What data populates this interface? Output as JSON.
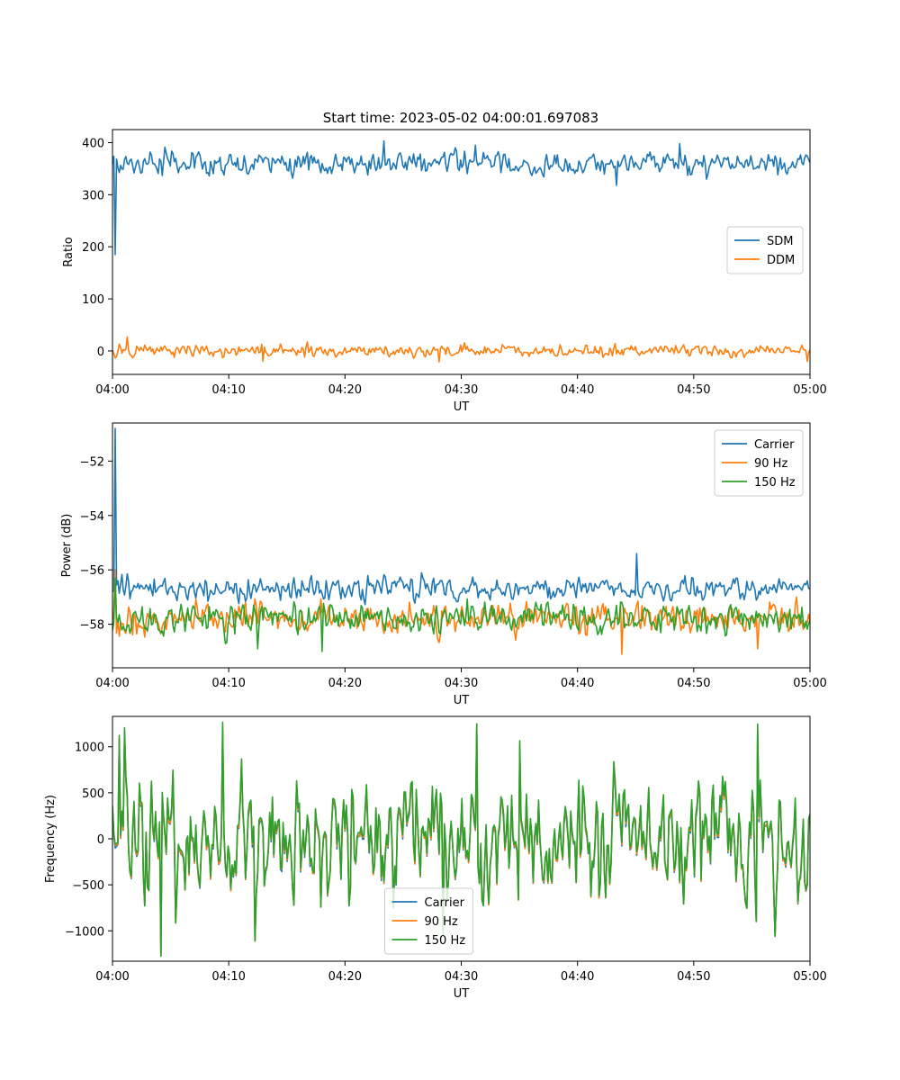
{
  "figure": {
    "title": "Start time: 2023-05-02 04:00:01.697083"
  },
  "colors": {
    "blue": "#1f77b4",
    "orange": "#ff7f0e",
    "green": "#2ca02c"
  },
  "chart_data": [
    {
      "type": "line",
      "title": "Start time: 2023-05-02 04:00:01.697083",
      "xlabel": "UT",
      "ylabel": "Ratio",
      "x_ticks": [
        "04:00",
        "04:10",
        "04:20",
        "04:30",
        "04:40",
        "04:50",
        "05:00"
      ],
      "xlim_minutes": [
        0,
        60
      ],
      "ylim": [
        -45,
        425
      ],
      "y_ticks": [
        400,
        300,
        200,
        100,
        0
      ],
      "y_tick_labels": [
        "400",
        "300",
        "200",
        "100",
        "0"
      ],
      "legend": "center-right",
      "series": [
        {
          "name": "SDM",
          "color": "#1f77b4",
          "base": 360,
          "noise": 15,
          "spikes": [
            [
              0.25,
              185
            ],
            [
              23.3,
              403
            ],
            [
              26.5,
              378
            ],
            [
              31.2,
              395
            ],
            [
              43.3,
              318
            ],
            [
              48.8,
              398
            ]
          ]
        },
        {
          "name": "DDM",
          "color": "#ff7f0e",
          "base": 0,
          "noise": 8,
          "spikes": [
            [
              1.3,
              27
            ],
            [
              13.0,
              -20
            ],
            [
              28.1,
              -21
            ],
            [
              59.8,
              -20
            ]
          ]
        }
      ]
    },
    {
      "type": "line",
      "xlabel": "UT",
      "ylabel": "Power (dB)",
      "x_ticks": [
        "04:00",
        "04:10",
        "04:20",
        "04:30",
        "04:40",
        "04:50",
        "05:00"
      ],
      "xlim_minutes": [
        0,
        60
      ],
      "ylim": [
        -59.6,
        -50.6
      ],
      "y_ticks": [
        -52,
        -54,
        -56,
        -58
      ],
      "y_tick_labels": [
        "−52",
        "−54",
        "−56",
        "−58"
      ],
      "legend": "top-right",
      "series": [
        {
          "name": "Carrier",
          "color": "#1f77b4",
          "base": -56.7,
          "noise": 0.28,
          "spikes": [
            [
              0.25,
              -50.8
            ],
            [
              0.5,
              -56.4
            ],
            [
              45.1,
              -55.4
            ]
          ]
        },
        {
          "name": "90 Hz",
          "color": "#ff7f0e",
          "base": -57.8,
          "noise": 0.38,
          "spikes": [
            [
              0.2,
              -56.0
            ],
            [
              43.8,
              -59.1
            ],
            [
              55.5,
              -58.9
            ]
          ]
        },
        {
          "name": "150 Hz",
          "color": "#2ca02c",
          "base": -57.8,
          "noise": 0.38,
          "spikes": [
            [
              0.2,
              -56.3
            ],
            [
              18.0,
              -59.0
            ],
            [
              12.5,
              -58.9
            ]
          ]
        }
      ]
    },
    {
      "type": "line",
      "xlabel": "UT",
      "ylabel": "Frequency (Hz)",
      "x_ticks": [
        "04:00",
        "04:10",
        "04:20",
        "04:30",
        "04:40",
        "04:50",
        "05:00"
      ],
      "xlim_minutes": [
        0,
        60
      ],
      "ylim": [
        -1330,
        1330
      ],
      "y_ticks": [
        1000,
        500,
        0,
        -500,
        -1000
      ],
      "y_tick_labels": [
        "1000",
        "500",
        "0",
        "−500",
        "−1000"
      ],
      "legend": "bottom-center",
      "series": [
        {
          "name": "Carrier",
          "color": "#1f77b4",
          "offset": -70
        },
        {
          "name": "90 Hz",
          "color": "#ff7f0e",
          "offset": -40
        },
        {
          "name": "150 Hz",
          "color": "#2ca02c",
          "offset": 0
        }
      ],
      "base": 0,
      "noise": 430,
      "spikes": [
        [
          0.6,
          1080
        ],
        [
          1.0,
          1160
        ],
        [
          4.2,
          -1220
        ],
        [
          9.5,
          1210
        ],
        [
          12.3,
          -1070
        ],
        [
          28.4,
          -1000
        ],
        [
          31.3,
          1200
        ],
        [
          35.0,
          1020
        ],
        [
          55.5,
          1200
        ],
        [
          55.4,
          -860
        ]
      ]
    }
  ]
}
